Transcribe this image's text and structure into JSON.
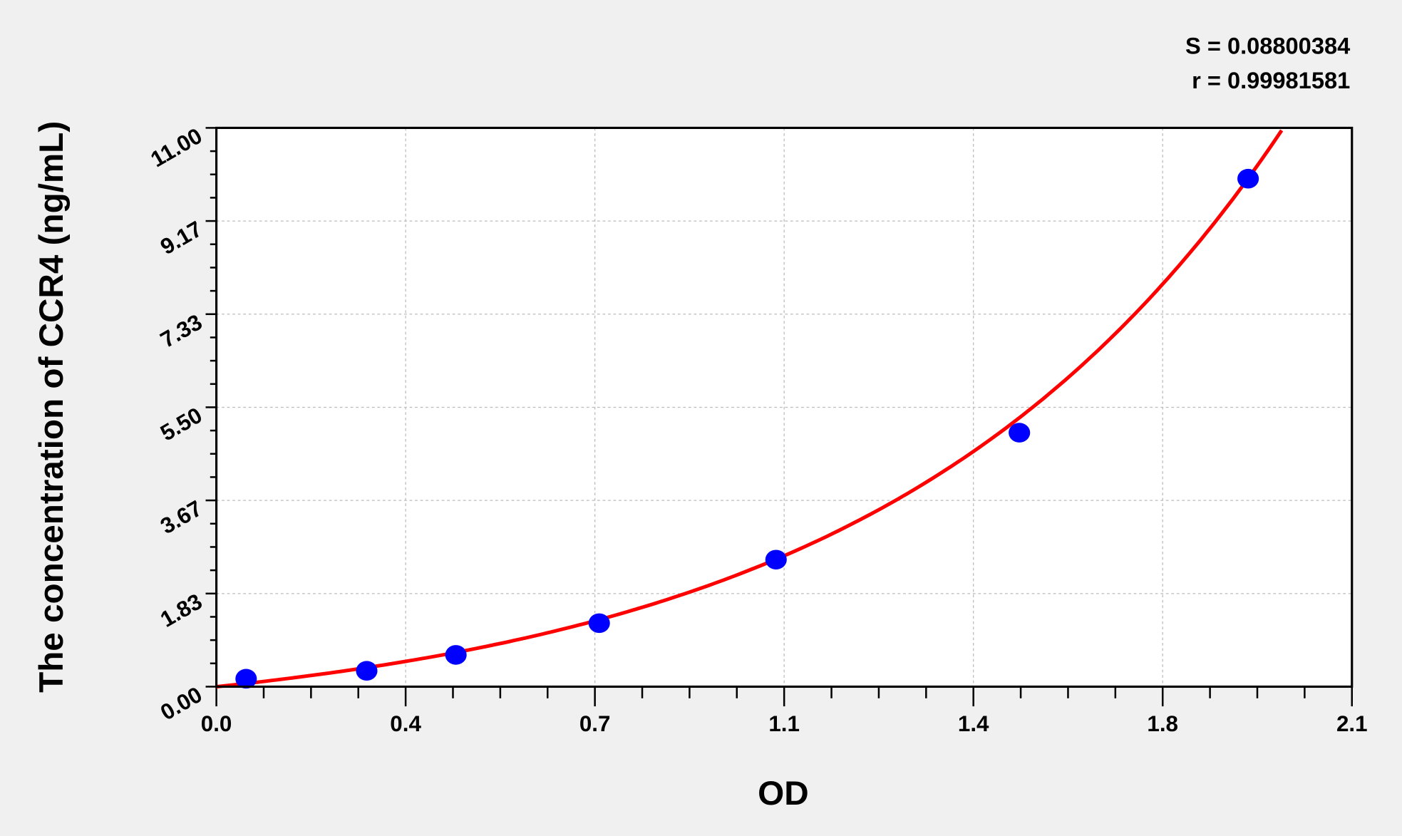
{
  "chart_data": {
    "type": "scatter",
    "xlabel": "OD",
    "ylabel": "The concentration of CCR4 (ng/mL)",
    "xlim": [
      0,
      2.1
    ],
    "ylim": [
      0,
      11
    ],
    "x_ticks": [
      0,
      0.35,
      0.7,
      1.05,
      1.4,
      1.75,
      2.1
    ],
    "x_tick_labels": [
      "0.0",
      "0.4",
      "0.7",
      "1.1",
      "1.4",
      "1.8",
      "2.1"
    ],
    "y_ticks": [
      0,
      1.833,
      3.667,
      5.5,
      7.333,
      9.167,
      11
    ],
    "y_tick_labels": [
      "0.00",
      "1.83",
      "3.67",
      "5.50",
      "7.33",
      "9.17",
      "11.00"
    ],
    "grid": true,
    "points": {
      "x": [
        0.055,
        0.278,
        0.443,
        0.708,
        1.035,
        1.485,
        1.908
      ],
      "y": [
        0.156,
        0.312,
        0.625,
        1.25,
        2.5,
        5,
        10
      ]
    },
    "fit": {
      "a": 0.824,
      "b": 1.35,
      "x_end": 1.97
    },
    "stats": {
      "s": "S = 0.08800384",
      "r": "r = 0.99981581"
    },
    "colors": {
      "points": "#0000ff",
      "curve": "#ff0000",
      "plot_bg": "#ffffff",
      "page_bg": "#f0f0f0",
      "grid": "#bbbbbb"
    }
  }
}
